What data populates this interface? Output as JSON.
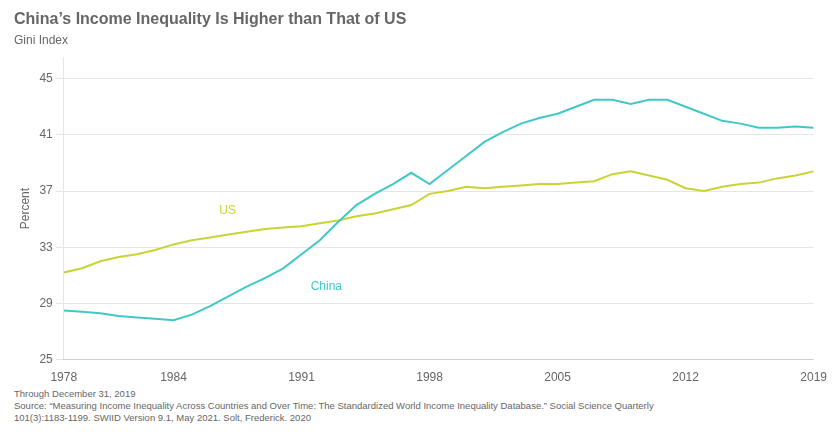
{
  "chart_data": {
    "type": "line",
    "title": "China’s Income Inequality Is Higher than That of US",
    "subtitle": "Gini Index",
    "y_label": "Percent",
    "footnotes": [
      "Through December 31, 2019",
      "Source: “Measuring Income Inequality Across Countries and Over Time: The Standardized World Income Inequality Database.” Social Science Quarterly\n101(3):1183-1199. SWIID Version 9.1, May 2021. Solt, Frederick. 2020"
    ],
    "x": [
      1978,
      1979,
      1980,
      1981,
      1982,
      1983,
      1984,
      1985,
      1986,
      1987,
      1988,
      1989,
      1990,
      1991,
      1992,
      1993,
      1994,
      1995,
      1996,
      1997,
      1998,
      1999,
      2000,
      2001,
      2002,
      2003,
      2004,
      2005,
      2006,
      2007,
      2008,
      2009,
      2010,
      2011,
      2012,
      2013,
      2014,
      2015,
      2016,
      2017,
      2018,
      2019
    ],
    "series": [
      {
        "name": "China",
        "color": "#40c8c8",
        "values": [
          28.5,
          28.4,
          28.3,
          28.1,
          28.0,
          27.9,
          27.8,
          28.2,
          28.8,
          29.5,
          30.2,
          30.8,
          31.5,
          32.5,
          33.5,
          34.8,
          36.0,
          36.8,
          37.5,
          38.3,
          37.5,
          38.5,
          39.5,
          40.5,
          41.2,
          41.8,
          42.2,
          42.5,
          43.0,
          43.5,
          43.5,
          43.2,
          43.5,
          43.5,
          43.0,
          42.5,
          42.0,
          41.8,
          41.5,
          41.5,
          41.6,
          41.5
        ]
      },
      {
        "name": "US",
        "color": "#c8d435",
        "values": [
          31.2,
          31.5,
          32.0,
          32.3,
          32.5,
          32.8,
          33.2,
          33.5,
          33.7,
          33.9,
          34.1,
          34.3,
          34.4,
          34.5,
          34.7,
          34.9,
          35.2,
          35.4,
          35.7,
          36.0,
          36.8,
          37.0,
          37.3,
          37.2,
          37.3,
          37.4,
          37.5,
          37.5,
          37.6,
          37.7,
          38.2,
          38.4,
          38.1,
          37.8,
          37.2,
          37.0,
          37.3,
          37.5,
          37.6,
          37.9,
          38.1,
          38.4
        ]
      }
    ],
    "annotations": [
      {
        "text": "China",
        "x": 1991.5,
        "y": 30.2,
        "color": "#40c8c8"
      },
      {
        "text": "US",
        "x": 1986.5,
        "y": 35.6,
        "color": "#c8d435"
      }
    ],
    "xlim": [
      1978,
      2019
    ],
    "xticks": [
      1978,
      1984,
      1991,
      1998,
      2005,
      2012,
      2019
    ],
    "ylim": [
      25,
      46.5
    ],
    "yticks": [
      25,
      29,
      33,
      37,
      41,
      45
    ],
    "grid": "y"
  }
}
